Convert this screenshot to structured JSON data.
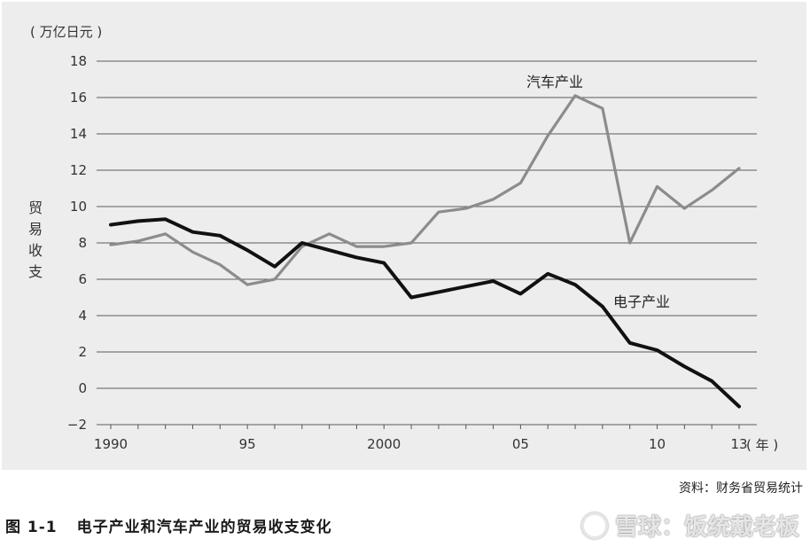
{
  "chart_data": {
    "type": "line",
    "unit_label": "( 万亿日元 )",
    "ylabel": "贸易收支",
    "xunit_label": "( 年 )",
    "ylim": [
      -2,
      18
    ],
    "yticks": [
      "18",
      "16",
      "14",
      "12",
      "10",
      "8",
      "6",
      "4",
      "2",
      "0",
      "−2"
    ],
    "ytick_values": [
      18,
      16,
      14,
      12,
      10,
      8,
      6,
      4,
      2,
      0,
      -2
    ],
    "xlim": [
      1990,
      2013
    ],
    "xtick_labels": [
      "1990",
      "95",
      "2000",
      "05",
      "10",
      "13"
    ],
    "xtick_values": [
      1990,
      1995,
      2000,
      2005,
      2010,
      2013
    ],
    "grid": true,
    "x": [
      1990,
      1991,
      1992,
      1993,
      1994,
      1995,
      1996,
      1997,
      1998,
      1999,
      2000,
      2001,
      2002,
      2003,
      2004,
      2005,
      2006,
      2007,
      2008,
      2009,
      2010,
      2011,
      2012,
      2013
    ],
    "series": [
      {
        "name": "汽车产业",
        "color": "#8c8c8c",
        "values": [
          7.9,
          8.1,
          8.5,
          7.5,
          6.8,
          5.7,
          6.0,
          7.8,
          8.5,
          7.8,
          7.8,
          8.0,
          9.7,
          9.9,
          10.4,
          11.3,
          13.9,
          16.1,
          15.4,
          8.0,
          11.1,
          9.9,
          10.9,
          12.1
        ]
      },
      {
        "name": "电子产业",
        "color": "#111111",
        "values": [
          9.0,
          9.2,
          9.3,
          8.6,
          8.4,
          7.6,
          6.7,
          8.0,
          7.6,
          7.2,
          6.9,
          5.0,
          5.3,
          5.6,
          5.9,
          5.2,
          6.3,
          5.7,
          4.5,
          2.5,
          2.1,
          1.2,
          0.4,
          -1.0
        ]
      }
    ]
  },
  "source_note": "资料：财务省贸易统计",
  "caption": {
    "number": "图 1-1",
    "title": "电子产业和汽车产业的贸易收支变化"
  },
  "watermark": {
    "text": "雪球：饭统戴老板",
    "color": "#e6e6e6"
  }
}
